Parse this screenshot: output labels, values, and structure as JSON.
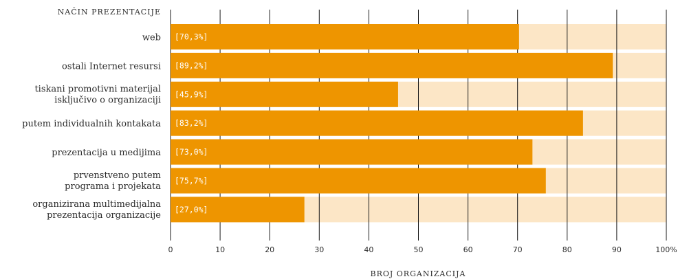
{
  "chart_data": {
    "type": "bar",
    "orientation": "horizontal",
    "ylabel": "NAČIN PREZENTACIJE",
    "xlabel": "BROJ ORGANIZACIJA",
    "categories": [
      [
        "web"
      ],
      [
        "ostali Internet resursi"
      ],
      [
        "tiskani promotivni materijal",
        "isključivo o organizaciji"
      ],
      [
        "putem individualnih kontakata"
      ],
      [
        "prezentacija u medijima"
      ],
      [
        "prvenstveno putem",
        "programa i projekata"
      ],
      [
        "organizirana multimedijalna",
        "prezentacija organizacije"
      ]
    ],
    "values": [
      70.3,
      89.2,
      45.9,
      83.2,
      73.0,
      75.7,
      27.0
    ],
    "value_labels": [
      "[70,3%]",
      "[89,2%]",
      "[45,9%]",
      "[83,2%]",
      "[73,0%]",
      "[75,7%]",
      "[27,0%]"
    ],
    "xlim": [
      0,
      100
    ],
    "xticks": [
      0,
      10,
      20,
      30,
      40,
      50,
      60,
      70,
      80,
      90,
      100
    ],
    "xtick_labels": [
      "0",
      "10",
      "20",
      "30",
      "40",
      "50",
      "60",
      "70",
      "80",
      "90",
      "100%"
    ],
    "grid": true,
    "legend": "none",
    "colors": {
      "bar": "#ee9500",
      "background_bar": "#fce6c6",
      "gridline": "#1a1a1a",
      "value_text": "#ffffff"
    }
  }
}
